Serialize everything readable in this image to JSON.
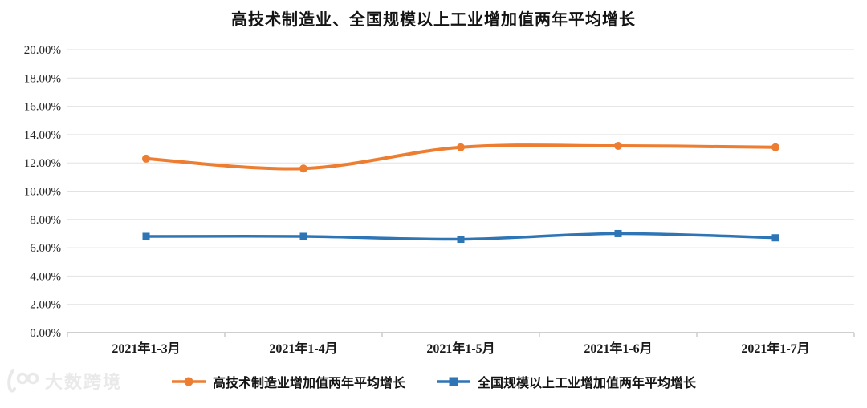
{
  "title": "高技术制造业、全国规模以上工业增加值两年平均增长",
  "watermark": {
    "logo": "100",
    "text": "大数跨境"
  },
  "chart_data": {
    "type": "line",
    "title": "高技术制造业、全国规模以上工业增加值两年平均增长",
    "categories": [
      "2021年1-3月",
      "2021年1-4月",
      "2021年1-5月",
      "2021年1-6月",
      "2021年1-7月"
    ],
    "series": [
      {
        "name": "高技术制造业增加值两年平均增长",
        "values": [
          12.3,
          11.6,
          13.1,
          13.2,
          13.1
        ],
        "color": "#ED7D31",
        "marker": "circle"
      },
      {
        "name": "全国规模以上工业增加值两年平均增长",
        "values": [
          6.8,
          6.8,
          6.6,
          7.0,
          6.7
        ],
        "color": "#2E75B6",
        "marker": "square"
      }
    ],
    "ylim": [
      0,
      20
    ],
    "ytick_step": 2,
    "ytick_labels": [
      "0.00%",
      "2.00%",
      "4.00%",
      "6.00%",
      "8.00%",
      "10.00%",
      "12.00%",
      "14.00%",
      "16.00%",
      "18.00%",
      "20.00%"
    ],
    "xlabel": "",
    "ylabel": "",
    "grid": true,
    "legend_position": "bottom",
    "line_style": "smooth"
  },
  "colors": {
    "background": "#ffffff",
    "gridline": "#e2e2e2",
    "axis": "#bfbfbf",
    "text": "#262626",
    "watermark": "#e9e9e9"
  }
}
